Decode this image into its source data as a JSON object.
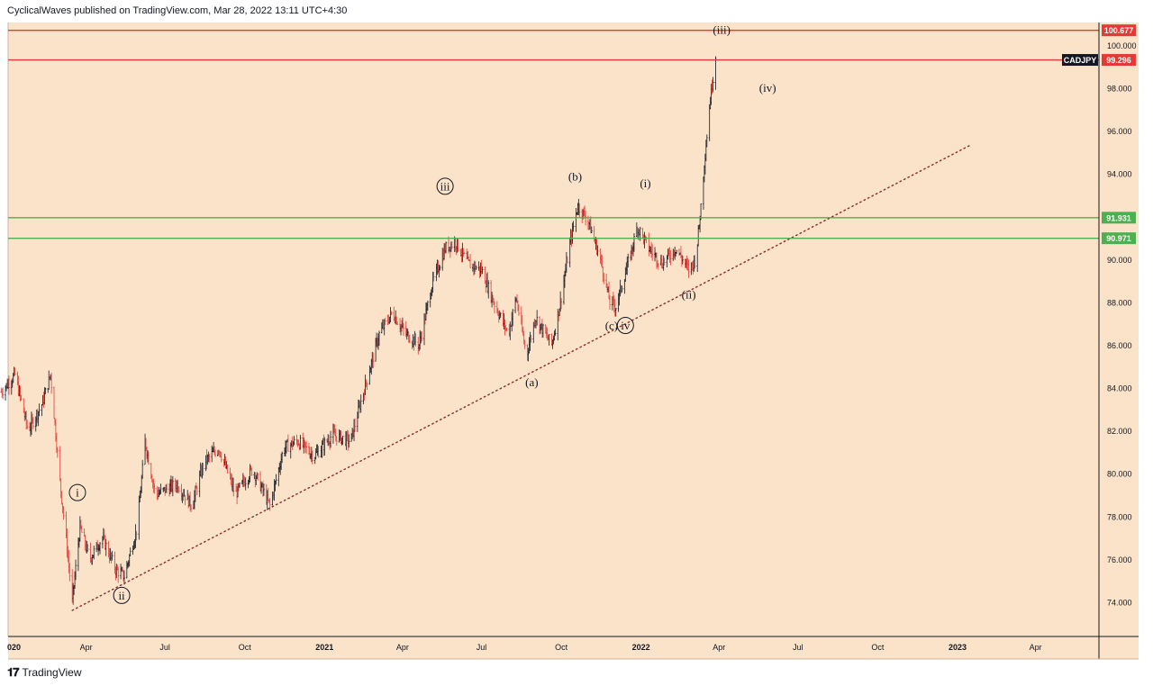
{
  "header": {
    "publish_text": "CyclicalWaves published on TradingView.com, Mar 28, 2022 13:11 UTC+4:30"
  },
  "footer": {
    "logo_icon": "tradingview-logo-icon",
    "brand": "TradingView"
  },
  "colors": {
    "background": "#fbe3c9",
    "candle_up": "#131722",
    "candle_down": "#e53935",
    "red_line": "#e53935",
    "green_line": "#4caf50",
    "trendline": "#8b2a2a"
  },
  "chart_data": {
    "type": "candlestick",
    "symbol": "CADJPY",
    "currency": "JPY",
    "y_axis": {
      "ticks": [
        "74.000",
        "76.000",
        "78.000",
        "80.000",
        "82.000",
        "84.000",
        "86.000",
        "88.000",
        "90.000",
        "92.000",
        "94.000",
        "96.000",
        "98.000",
        "100.000"
      ],
      "range": [
        72.0,
        101.0
      ]
    },
    "x_axis": {
      "ticks": [
        {
          "label": "020",
          "date": "2020-01-01"
        },
        {
          "label": "Apr",
          "date": "2020-04-01"
        },
        {
          "label": "Jul",
          "date": "2020-07-01"
        },
        {
          "label": "Oct",
          "date": "2020-10-01"
        },
        {
          "label": "2021",
          "date": "2021-01-01"
        },
        {
          "label": "Apr",
          "date": "2021-04-01"
        },
        {
          "label": "Jul",
          "date": "2021-07-01"
        },
        {
          "label": "Oct",
          "date": "2021-10-01"
        },
        {
          "label": "2022",
          "date": "2022-01-01"
        },
        {
          "label": "Apr",
          "date": "2022-04-01"
        },
        {
          "label": "Jul",
          "date": "2022-07-01"
        },
        {
          "label": "Oct",
          "date": "2022-10-01"
        },
        {
          "label": "2023",
          "date": "2023-01-01"
        },
        {
          "label": "Apr",
          "date": "2023-04-01"
        }
      ]
    },
    "price_path": [
      [
        "2019-12-25",
        83.8
      ],
      [
        "2020-01-10",
        84.6
      ],
      [
        "2020-01-25",
        82.0
      ],
      [
        "2020-02-10",
        83.2
      ],
      [
        "2020-02-20",
        84.6
      ],
      [
        "2020-03-01",
        80.0
      ],
      [
        "2020-03-10",
        76.5
      ],
      [
        "2020-03-16",
        74.0
      ],
      [
        "2020-03-25",
        77.5
      ],
      [
        "2020-04-05",
        76.0
      ],
      [
        "2020-04-20",
        77.0
      ],
      [
        "2020-05-05",
        75.5
      ],
      [
        "2020-05-15",
        75.2
      ],
      [
        "2020-05-30",
        77.5
      ],
      [
        "2020-06-08",
        81.5
      ],
      [
        "2020-06-20",
        79.0
      ],
      [
        "2020-07-15",
        79.5
      ],
      [
        "2020-08-01",
        78.5
      ],
      [
        "2020-08-15",
        80.5
      ],
      [
        "2020-09-01",
        81.2
      ],
      [
        "2020-09-20",
        79.0
      ],
      [
        "2020-10-10",
        80.2
      ],
      [
        "2020-10-30",
        78.5
      ],
      [
        "2020-11-15",
        81.2
      ],
      [
        "2020-12-01",
        81.5
      ],
      [
        "2020-12-20",
        80.8
      ],
      [
        "2021-01-10",
        81.8
      ],
      [
        "2021-01-31",
        81.5
      ],
      [
        "2021-02-15",
        83.8
      ],
      [
        "2021-03-05",
        86.5
      ],
      [
        "2021-03-20",
        87.5
      ],
      [
        "2021-04-05",
        86.5
      ],
      [
        "2021-04-20",
        86.0
      ],
      [
        "2021-05-05",
        88.8
      ],
      [
        "2021-05-20",
        90.5
      ],
      [
        "2021-06-01",
        90.8
      ],
      [
        "2021-06-15",
        89.8
      ],
      [
        "2021-07-01",
        89.5
      ],
      [
        "2021-07-15",
        88.0
      ],
      [
        "2021-08-01",
        86.5
      ],
      [
        "2021-08-10",
        88.2
      ],
      [
        "2021-08-22",
        85.5
      ],
      [
        "2021-09-01",
        87.3
      ],
      [
        "2021-09-20",
        86.0
      ],
      [
        "2021-09-30",
        88.0
      ],
      [
        "2021-10-10",
        90.5
      ],
      [
        "2021-10-20",
        92.5
      ],
      [
        "2021-11-01",
        91.8
      ],
      [
        "2021-11-15",
        90.0
      ],
      [
        "2021-11-26",
        88.0
      ],
      [
        "2021-12-03",
        87.8
      ],
      [
        "2021-12-15",
        89.5
      ],
      [
        "2021-12-28",
        91.5
      ],
      [
        "2022-01-10",
        90.5
      ],
      [
        "2022-01-25",
        89.8
      ],
      [
        "2022-02-10",
        90.5
      ],
      [
        "2022-02-25",
        89.5
      ],
      [
        "2022-03-05",
        90.0
      ],
      [
        "2022-03-10",
        92.0
      ],
      [
        "2022-03-15",
        94.5
      ],
      [
        "2022-03-22",
        97.5
      ],
      [
        "2022-03-28",
        99.5
      ]
    ],
    "horizontal_lines": [
      {
        "price": 100.677,
        "label": "100.677",
        "color": "#e53935"
      },
      {
        "price": 99.296,
        "label": "99.296",
        "color": "#e53935"
      },
      {
        "price": 91.931,
        "label": "91.931",
        "color": "#4caf50"
      },
      {
        "price": 90.971,
        "label": "90.971",
        "color": "#4caf50"
      }
    ],
    "trendline": {
      "start": {
        "date": "2020-03-16",
        "price": 73.6
      },
      "end": {
        "date": "2023-01-15",
        "price": 95.3
      },
      "style": "dotted"
    },
    "wave_labels": [
      {
        "text": "i",
        "circled": true,
        "date": "2020-03-22",
        "price": 79.1
      },
      {
        "text": "ii",
        "circled": true,
        "date": "2020-05-12",
        "price": 74.3
      },
      {
        "text": "iii",
        "circled": true,
        "date": "2021-05-20",
        "price": 93.4
      },
      {
        "text": "(a)",
        "circled": false,
        "date": "2021-08-28",
        "price": 84.25
      },
      {
        "text": "(b)",
        "circled": false,
        "date": "2021-10-17",
        "price": 93.85
      },
      {
        "text": "(c)",
        "circled": false,
        "date": "2021-11-28",
        "price": 86.9
      },
      {
        "text": "iv",
        "circled": true,
        "date": "2021-12-14",
        "price": 86.9
      },
      {
        "text": "(i)",
        "circled": false,
        "date": "2022-01-06",
        "price": 93.55
      },
      {
        "text": "(ii)",
        "circled": false,
        "date": "2022-02-25",
        "price": 88.35
      },
      {
        "text": "(iii)",
        "circled": false,
        "date": "2022-04-04",
        "price": 100.7
      },
      {
        "text": "(iv)",
        "circled": false,
        "date": "2022-05-27",
        "price": 98.0
      }
    ]
  }
}
